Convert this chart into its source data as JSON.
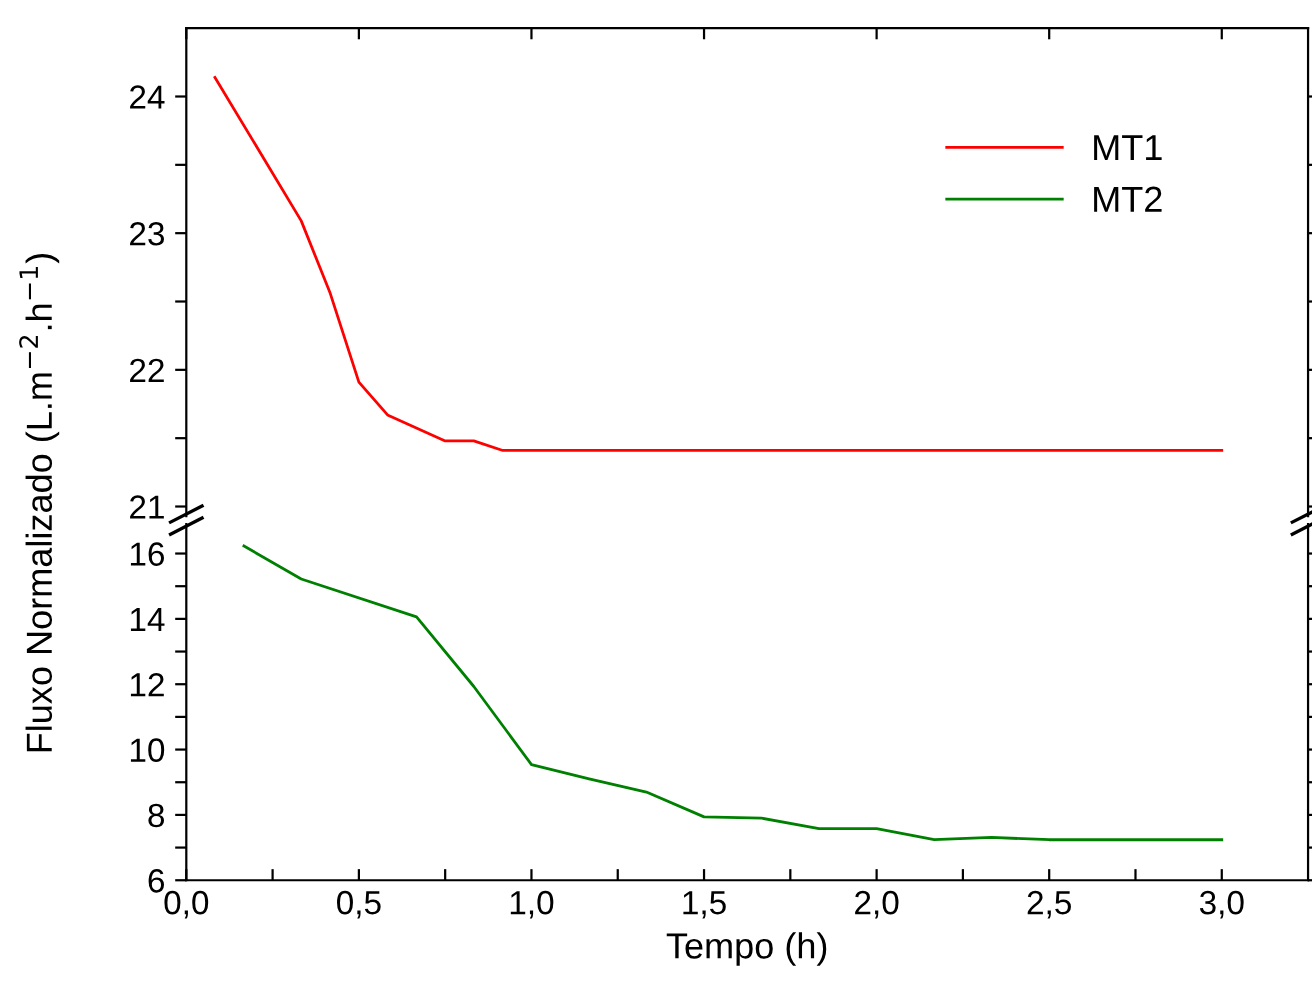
{
  "chart_data": [
    {
      "type": "line",
      "ylabel": "Fluxo Normalizado (L.m$^{−2}$.h$^{−1}$)",
      "legend": "top right",
      "tick_labels": "y",
      "series": [
        {
          "name": "MT1",
          "color": "#ff0000",
          "x": [
            0.083,
            0.333,
            0.417,
            0.5,
            0.583,
            0.75,
            0.833,
            0.917,
            3.0
          ],
          "values": [
            24.14,
            23.09,
            22.56,
            21.91,
            21.67,
            21.48,
            21.48,
            21.41,
            21.41
          ]
        }
      ],
      "xlim": [
        0,
        3.25
      ],
      "xticks": [
        0,
        0.5,
        1,
        1.5,
        2,
        2.5,
        3
      ],
      "ylim": [
        20.93,
        24.5
      ],
      "yticks": [
        21,
        {
          "value": 21.5,
          "label": null
        },
        22,
        {
          "value": 22.5,
          "label": null
        },
        23,
        {
          "value": 23.5,
          "label": null
        },
        24
      ]
    },
    {
      "type": "line",
      "xlabel": "Tempo (h)",
      "series": [
        {
          "name": "MT2",
          "color": "#008000",
          "x": [
            0.167,
            0.333,
            0.667,
            0.833,
            1.0,
            1.167,
            1.333,
            1.5,
            1.667,
            1.833,
            2.0,
            2.167,
            2.333,
            2.5,
            3.0
          ],
          "values": [
            16.23,
            15.22,
            14.06,
            11.93,
            9.54,
            9.1,
            8.7,
            7.94,
            7.9,
            7.58,
            7.58,
            7.24,
            7.31,
            7.24,
            7.24
          ]
        }
      ],
      "xlim": [
        0,
        3.25
      ],
      "xticks": [
        {
          "value": 0,
          "label": "0,0"
        },
        {
          "value": 0.25,
          "label": null
        },
        {
          "value": 0.5,
          "label": "0,5"
        },
        {
          "value": 0.75,
          "label": null
        },
        {
          "value": 1,
          "label": "1,0"
        },
        {
          "value": 1.25,
          "label": null
        },
        {
          "value": 1.5,
          "label": "1,5"
        },
        {
          "value": 1.75,
          "label": null
        },
        {
          "value": 2,
          "label": "2,0"
        },
        {
          "value": 2.25,
          "label": null
        },
        {
          "value": 2.5,
          "label": "2,5"
        },
        {
          "value": 2.75,
          "label": null
        },
        {
          "value": 3,
          "label": "3,0"
        }
      ],
      "ylim": [
        6,
        16.9
      ],
      "yticks": [
        6,
        {
          "value": 7,
          "label": null
        },
        8,
        {
          "value": 9,
          "label": null
        },
        10,
        {
          "value": 11,
          "label": null
        },
        12,
        {
          "value": 13,
          "label": null
        },
        14,
        {
          "value": 15,
          "label": null
        },
        16
      ]
    }
  ]
}
